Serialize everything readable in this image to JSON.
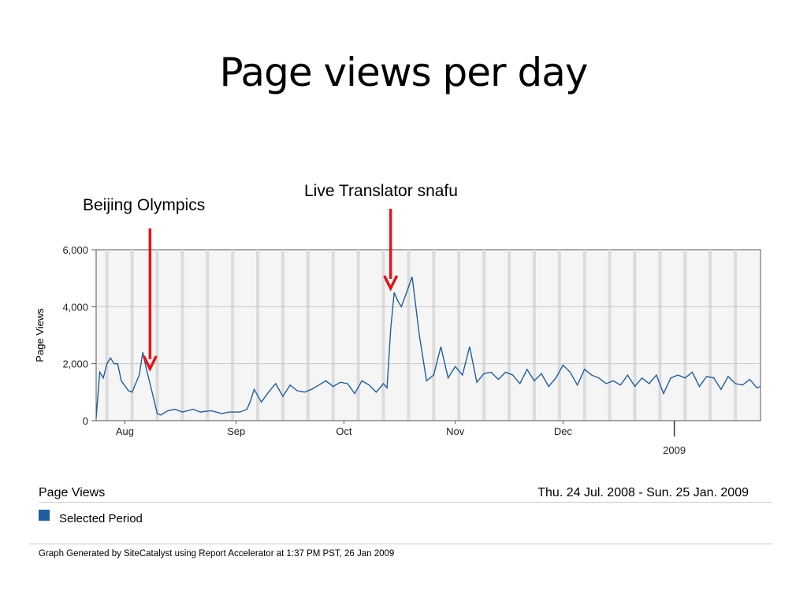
{
  "slide": {
    "title": "Page views per day"
  },
  "annotations": [
    {
      "label": "Beijing Olympics",
      "date": "2008-08-08",
      "arrow_color": "#e3151a"
    },
    {
      "label": "Live Translator snafu",
      "date": "2008-10-14",
      "arrow_color": "#e3151a"
    }
  ],
  "chart_data": {
    "type": "line",
    "title": "",
    "xlabel": "",
    "ylabel": "Page Views",
    "ylim": [
      0,
      6000
    ],
    "yticks": [
      0,
      2000,
      4000,
      6000
    ],
    "ytick_labels": [
      "0",
      "2,000",
      "4,000",
      "6,000"
    ],
    "xlim": [
      "2008-07-24",
      "2009-01-25"
    ],
    "xticks": [
      {
        "label": "Aug",
        "date": "2008-08-01"
      },
      {
        "label": "Sep",
        "date": "2008-09-01"
      },
      {
        "label": "Oct",
        "date": "2008-10-01"
      },
      {
        "label": "Nov",
        "date": "2008-11-01"
      },
      {
        "label": "Dec",
        "date": "2008-12-01"
      },
      {
        "label": "2009",
        "date": "2009-01-01"
      }
    ],
    "grid": "vertical-weekly",
    "legend_position": "bottom",
    "series_color": "#1f5fa0",
    "series": [
      {
        "name": "Selected Period",
        "x": [
          "2008-07-24",
          "2008-07-25",
          "2008-07-26",
          "2008-07-27",
          "2008-07-28",
          "2008-07-29",
          "2008-07-30",
          "2008-07-31",
          "2008-08-02",
          "2008-08-03",
          "2008-08-05",
          "2008-08-06",
          "2008-08-07",
          "2008-08-08",
          "2008-08-10",
          "2008-08-11",
          "2008-08-13",
          "2008-08-15",
          "2008-08-17",
          "2008-08-20",
          "2008-08-22",
          "2008-08-25",
          "2008-08-28",
          "2008-08-30",
          "2008-09-02",
          "2008-09-04",
          "2008-09-05",
          "2008-09-06",
          "2008-09-08",
          "2008-09-10",
          "2008-09-12",
          "2008-09-14",
          "2008-09-16",
          "2008-09-18",
          "2008-09-20",
          "2008-09-22",
          "2008-09-24",
          "2008-09-26",
          "2008-09-28",
          "2008-09-30",
          "2008-10-02",
          "2008-10-04",
          "2008-10-06",
          "2008-10-08",
          "2008-10-10",
          "2008-10-12",
          "2008-10-13",
          "2008-10-14",
          "2008-10-15",
          "2008-10-16",
          "2008-10-17",
          "2008-10-18",
          "2008-10-20",
          "2008-10-22",
          "2008-10-24",
          "2008-10-26",
          "2008-10-28",
          "2008-10-30",
          "2008-11-01",
          "2008-11-03",
          "2008-11-05",
          "2008-11-07",
          "2008-11-09",
          "2008-11-11",
          "2008-11-13",
          "2008-11-15",
          "2008-11-17",
          "2008-11-19",
          "2008-11-21",
          "2008-11-23",
          "2008-11-25",
          "2008-11-27",
          "2008-11-29",
          "2008-12-01",
          "2008-12-03",
          "2008-12-05",
          "2008-12-07",
          "2008-12-09",
          "2008-12-11",
          "2008-12-13",
          "2008-12-15",
          "2008-12-17",
          "2008-12-19",
          "2008-12-21",
          "2008-12-23",
          "2008-12-25",
          "2008-12-27",
          "2008-12-29",
          "2008-12-31",
          "2009-01-02",
          "2009-01-04",
          "2009-01-06",
          "2009-01-08",
          "2009-01-10",
          "2009-01-12",
          "2009-01-14",
          "2009-01-16",
          "2009-01-18",
          "2009-01-20",
          "2009-01-22",
          "2009-01-24",
          "2009-01-25"
        ],
        "values": [
          100,
          1700,
          1500,
          2000,
          2200,
          2000,
          2000,
          1400,
          1050,
          1000,
          1600,
          2400,
          1800,
          1300,
          250,
          200,
          350,
          400,
          300,
          400,
          300,
          350,
          250,
          300,
          300,
          400,
          700,
          1100,
          650,
          1000,
          1300,
          850,
          1250,
          1050,
          1000,
          1100,
          1250,
          1400,
          1200,
          1350,
          1300,
          950,
          1400,
          1250,
          1000,
          1300,
          1150,
          3200,
          4500,
          4200,
          4000,
          4350,
          5050,
          3000,
          1400,
          1600,
          2600,
          1500,
          1900,
          1600,
          2600,
          1350,
          1650,
          1700,
          1450,
          1700,
          1600,
          1300,
          1800,
          1400,
          1650,
          1200,
          1500,
          1950,
          1700,
          1250,
          1800,
          1600,
          1500,
          1300,
          1400,
          1250,
          1600,
          1200,
          1500,
          1300,
          1600,
          950,
          1500,
          1600,
          1500,
          1700,
          1200,
          1550,
          1500,
          1100,
          1550,
          1300,
          1250,
          1450,
          1150,
          1200
        ]
      }
    ]
  },
  "legend": {
    "title": "Page Views",
    "period": "Thu. 24 Jul. 2008 - Sun. 25 Jan. 2009",
    "item_label": "Selected Period",
    "item_color": "#1f5fa0"
  },
  "footer": {
    "text": "Graph Generated by SiteCatalyst using Report Accelerator at  1:37 PM PST, 26 Jan 2009"
  }
}
